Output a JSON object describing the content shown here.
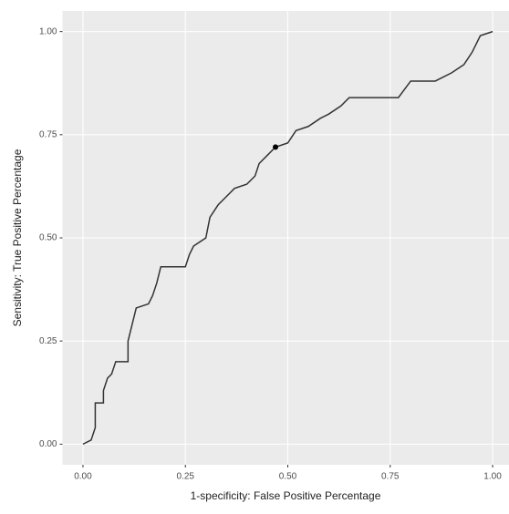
{
  "chart_data": {
    "type": "line",
    "x_label": "1-specificity: False Positive Percentage",
    "y_label": "Sensitivity: True Positive Percentage",
    "xlim": [
      -0.05,
      1.04
    ],
    "ylim": [
      -0.05,
      1.05
    ],
    "xticks": [
      {
        "value": 0,
        "label": "0.00"
      },
      {
        "value": 0.25,
        "label": "0.25"
      },
      {
        "value": 0.5,
        "label": "0.50"
      },
      {
        "value": 0.75,
        "label": "0.75"
      },
      {
        "value": 1,
        "label": "1.00"
      }
    ],
    "yticks": [
      {
        "value": 0,
        "label": "0.00"
      },
      {
        "value": 0.25,
        "label": "0.25"
      },
      {
        "value": 0.5,
        "label": "0.50"
      },
      {
        "value": 0.75,
        "label": "0.75"
      },
      {
        "value": 1,
        "label": "1.00"
      }
    ],
    "grid": true,
    "series": [
      {
        "color": "#333333",
        "x": [
          0,
          0.02,
          0.03,
          0.03,
          0.05,
          0.05,
          0.06,
          0.07,
          0.08,
          0.11,
          0.11,
          0.12,
          0.13,
          0.16,
          0.17,
          0.18,
          0.19,
          0.25,
          0.26,
          0.27,
          0.3,
          0.31,
          0.33,
          0.35,
          0.37,
          0.4,
          0.42,
          0.43,
          0.45,
          0.47,
          0.5,
          0.52,
          0.55,
          0.58,
          0.6,
          0.63,
          0.65,
          0.77,
          0.8,
          0.86,
          0.9,
          0.93,
          0.95,
          0.97,
          1.0
        ],
        "values": [
          0,
          0.01,
          0.04,
          0.1,
          0.1,
          0.13,
          0.16,
          0.17,
          0.2,
          0.2,
          0.25,
          0.29,
          0.33,
          0.34,
          0.36,
          0.39,
          0.43,
          0.43,
          0.46,
          0.48,
          0.5,
          0.55,
          0.58,
          0.6,
          0.62,
          0.63,
          0.65,
          0.68,
          0.7,
          0.72,
          0.73,
          0.76,
          0.77,
          0.79,
          0.8,
          0.82,
          0.84,
          0.84,
          0.88,
          0.88,
          0.9,
          0.92,
          0.95,
          0.99,
          1.0
        ]
      }
    ],
    "highlight_point": {
      "x": 0.47,
      "y": 0.72,
      "color": "#000000"
    }
  }
}
